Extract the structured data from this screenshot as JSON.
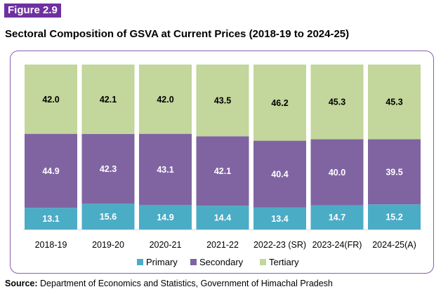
{
  "figure_label": "Figure 2.9",
  "title": "Sectoral Composition of GSVA at Current Prices (2018-19 to 2024-25)",
  "source_label": "Source:",
  "source_text": "Department of Economics and Statistics, Government of Himachal Pradesh",
  "chart_data": {
    "type": "bar",
    "stacked": true,
    "categories": [
      "2018-19",
      "2019-20",
      "2020-21",
      "2021-22",
      "2022-23 (SR)",
      "2023-24(FR)",
      "2024-25(A)"
    ],
    "series": [
      {
        "name": "Primary",
        "color": "#4bacc6",
        "values": [
          13.1,
          15.6,
          14.9,
          14.4,
          13.4,
          14.7,
          15.2
        ]
      },
      {
        "name": "Secondary",
        "color": "#8064a2",
        "values": [
          44.9,
          42.3,
          43.1,
          42.1,
          40.4,
          40.0,
          39.5
        ]
      },
      {
        "name": "Tertiary",
        "color": "#c3d69b",
        "values": [
          42.0,
          42.1,
          42.0,
          43.5,
          46.2,
          45.3,
          45.3
        ]
      }
    ],
    "ylim": [
      0,
      100
    ],
    "grid": false,
    "legend_position": "bottom",
    "data_labels": true
  }
}
